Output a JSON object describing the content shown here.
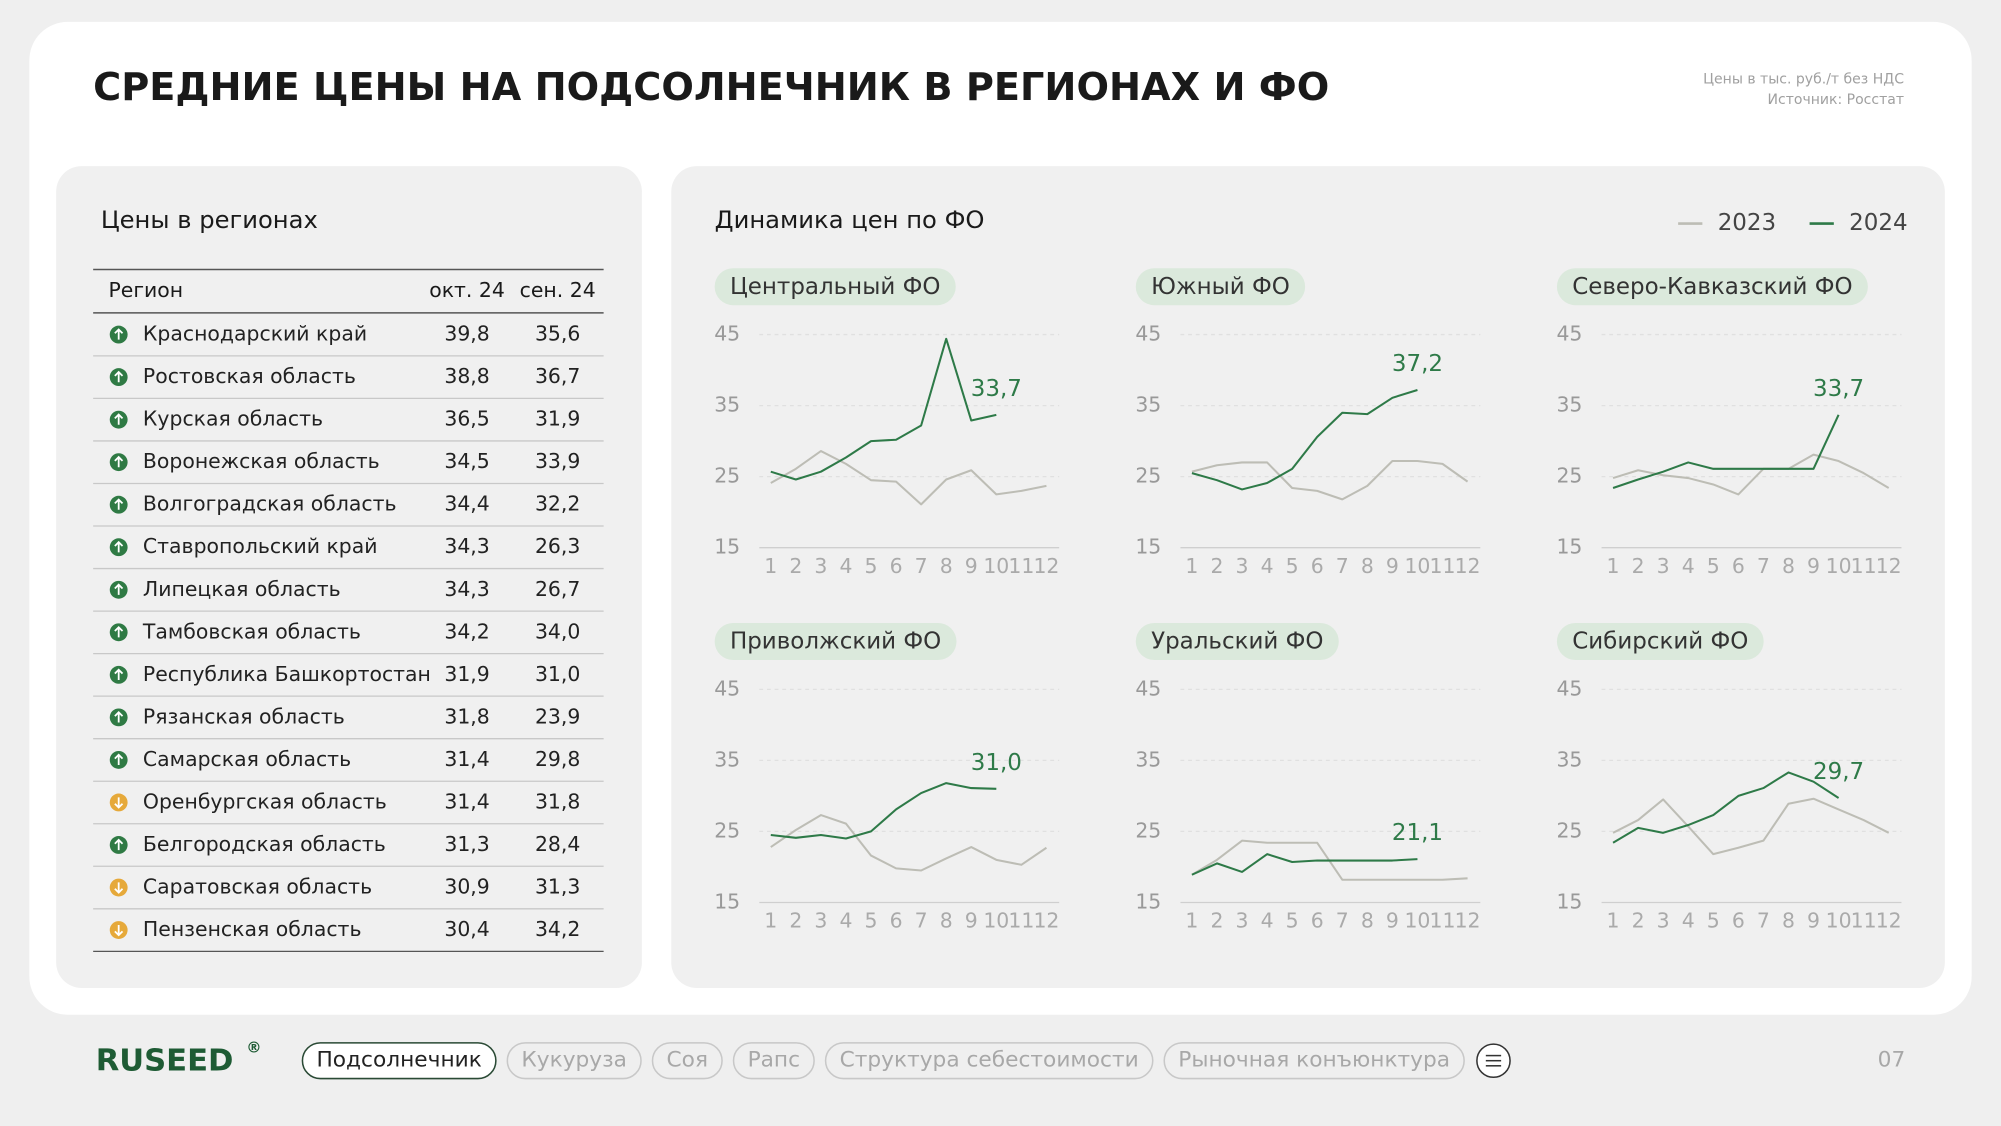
{
  "header": {
    "title": "СРЕДНИЕ ЦЕНЫ НА ПОДСОЛНЕЧНИК В РЕГИОНАХ И ФО",
    "note": [
      "Цены в тыс. руб./т без НДС",
      "Источник: Росстат"
    ]
  },
  "table": {
    "title": "Цены в регионах",
    "columns": [
      "Регион",
      "окт. 24",
      "сен. 24"
    ],
    "rows": [
      {
        "region": "Краснодарский край",
        "oct": "39,8",
        "sep": "35,6",
        "trend": "up"
      },
      {
        "region": "Ростовская область",
        "oct": "38,8",
        "sep": "36,7",
        "trend": "up"
      },
      {
        "region": "Курская область",
        "oct": "36,5",
        "sep": "31,9",
        "trend": "up"
      },
      {
        "region": "Воронежская область",
        "oct": "34,5",
        "sep": "33,9",
        "trend": "up"
      },
      {
        "region": "Волгоградская область",
        "oct": "34,4",
        "sep": "32,2",
        "trend": "up"
      },
      {
        "region": "Ставропольский край",
        "oct": "34,3",
        "sep": "26,3",
        "trend": "up"
      },
      {
        "region": "Липецкая область",
        "oct": "34,3",
        "sep": "26,7",
        "trend": "up"
      },
      {
        "region": "Тамбовская область",
        "oct": "34,2",
        "sep": "34,0",
        "trend": "up"
      },
      {
        "region": "Республика Башкортостан",
        "oct": "31,9",
        "sep": "31,0",
        "trend": "up"
      },
      {
        "region": "Рязанская область",
        "oct": "31,8",
        "sep": "23,9",
        "trend": "up"
      },
      {
        "region": "Самарская область",
        "oct": "31,4",
        "sep": "29,8",
        "trend": "up"
      },
      {
        "region": "Оренбургская область",
        "oct": "31,4",
        "sep": "31,8",
        "trend": "down"
      },
      {
        "region": "Белгородская область",
        "oct": "31,3",
        "sep": "28,4",
        "trend": "up"
      },
      {
        "region": "Саратовская область",
        "oct": "30,9",
        "sep": "31,3",
        "trend": "down"
      },
      {
        "region": "Пензенская область",
        "oct": "30,4",
        "sep": "34,2",
        "trend": "down"
      }
    ]
  },
  "charts_title": "Динамика цен по ФО",
  "chart_data": [
    {
      "type": "line",
      "title": "Центральный ФО",
      "categories": [
        "1",
        "2",
        "3",
        "4",
        "5",
        "6",
        "7",
        "8",
        "9",
        "10",
        "11",
        "12"
      ],
      "ylim": [
        15,
        45
      ],
      "yticks": [
        15,
        25,
        35,
        45
      ],
      "series": [
        {
          "name": "2023",
          "color": "#bdbdb5",
          "values": [
            24.1,
            26.1,
            28.6,
            26.8,
            24.5,
            24.3,
            21.1,
            24.6,
            25.9,
            22.5,
            23.0,
            23.7
          ]
        },
        {
          "name": "2024",
          "color": "#2e7a48",
          "values": [
            25.7,
            24.6,
            25.7,
            27.7,
            30.0,
            30.2,
            32.2,
            44.4,
            32.9,
            33.7,
            null,
            null
          ],
          "value_labels": [
            null,
            null,
            null,
            null,
            null,
            null,
            null,
            null,
            null,
            "33,7",
            null,
            null
          ]
        }
      ]
    },
    {
      "type": "line",
      "title": "Южный ФО",
      "categories": [
        "1",
        "2",
        "3",
        "4",
        "5",
        "6",
        "7",
        "8",
        "9",
        "10",
        "11",
        "12"
      ],
      "ylim": [
        15,
        45
      ],
      "yticks": [
        15,
        25,
        35,
        45
      ],
      "series": [
        {
          "name": "2023",
          "color": "#bdbdb5",
          "values": [
            25.7,
            26.6,
            27.0,
            27.0,
            23.4,
            23.0,
            21.8,
            23.7,
            27.2,
            27.2,
            26.8,
            24.3
          ]
        },
        {
          "name": "2024",
          "color": "#2e7a48",
          "values": [
            25.5,
            24.5,
            23.2,
            24.1,
            26.1,
            30.6,
            34.0,
            33.8,
            36.1,
            37.2,
            null,
            null
          ],
          "value_labels": [
            null,
            null,
            null,
            null,
            null,
            null,
            null,
            null,
            null,
            "37,2",
            null,
            null
          ]
        }
      ]
    },
    {
      "type": "line",
      "title": "Северо-Кавказский ФО",
      "categories": [
        "1",
        "2",
        "3",
        "4",
        "5",
        "6",
        "7",
        "8",
        "9",
        "10",
        "11",
        "12"
      ],
      "ylim": [
        15,
        45
      ],
      "yticks": [
        15,
        25,
        35,
        45
      ],
      "series": [
        {
          "name": "2023",
          "color": "#bdbdb5",
          "values": [
            24.8,
            25.9,
            25.2,
            24.8,
            23.9,
            22.5,
            26.1,
            26.1,
            28.1,
            27.2,
            25.5,
            23.4
          ]
        },
        {
          "name": "2024",
          "color": "#2e7a48",
          "values": [
            23.4,
            24.6,
            25.7,
            27.0,
            26.1,
            26.1,
            26.1,
            26.1,
            26.1,
            33.7,
            null,
            null
          ],
          "value_labels": [
            null,
            null,
            null,
            null,
            null,
            null,
            null,
            null,
            null,
            "33,7",
            null,
            null
          ]
        }
      ]
    },
    {
      "type": "line",
      "title": "Приволжский ФО",
      "categories": [
        "1",
        "2",
        "3",
        "4",
        "5",
        "6",
        "7",
        "8",
        "9",
        "10",
        "11",
        "12"
      ],
      "ylim": [
        15,
        45
      ],
      "yticks": [
        15,
        25,
        35,
        45
      ],
      "series": [
        {
          "name": "2023",
          "color": "#bdbdb5",
          "values": [
            22.8,
            25.2,
            27.3,
            26.1,
            21.6,
            19.8,
            19.5,
            21.2,
            22.8,
            21.0,
            20.3,
            22.7
          ]
        },
        {
          "name": "2024",
          "color": "#2e7a48",
          "values": [
            24.5,
            24.1,
            24.5,
            24.0,
            25.0,
            28.1,
            30.4,
            31.8,
            31.1,
            31.0,
            null,
            null
          ],
          "value_labels": [
            null,
            null,
            null,
            null,
            null,
            null,
            null,
            null,
            null,
            "31,0",
            null,
            null
          ]
        }
      ]
    },
    {
      "type": "line",
      "title": "Уральский ФО",
      "categories": [
        "1",
        "2",
        "3",
        "4",
        "5",
        "6",
        "7",
        "8",
        "9",
        "10",
        "11",
        "12"
      ],
      "ylim": [
        15,
        45
      ],
      "yticks": [
        15,
        25,
        35,
        45
      ],
      "series": [
        {
          "name": "2023",
          "color": "#bdbdb5",
          "values": [
            18.9,
            21.0,
            23.7,
            23.4,
            23.4,
            23.4,
            18.2,
            18.2,
            18.2,
            18.2,
            18.2,
            18.4
          ]
        },
        {
          "name": "2024",
          "color": "#2e7a48",
          "values": [
            18.9,
            20.5,
            19.3,
            21.8,
            20.7,
            20.9,
            20.9,
            20.9,
            20.9,
            21.1,
            null,
            null
          ],
          "value_labels": [
            null,
            null,
            null,
            null,
            null,
            null,
            null,
            null,
            null,
            "21,1",
            null,
            null
          ]
        }
      ]
    },
    {
      "type": "line",
      "title": "Сибирский ФО",
      "categories": [
        "1",
        "2",
        "3",
        "4",
        "5",
        "6",
        "7",
        "8",
        "9",
        "10",
        "11",
        "12"
      ],
      "ylim": [
        15,
        45
      ],
      "yticks": [
        15,
        25,
        35,
        45
      ],
      "series": [
        {
          "name": "2023",
          "color": "#bdbdb5",
          "values": [
            24.8,
            26.6,
            29.5,
            25.7,
            21.8,
            22.7,
            23.7,
            28.9,
            29.6,
            28.1,
            26.6,
            24.8
          ]
        },
        {
          "name": "2024",
          "color": "#2e7a48",
          "values": [
            23.4,
            25.5,
            24.8,
            25.9,
            27.3,
            30.0,
            31.1,
            33.3,
            32.0,
            29.7,
            null,
            null
          ],
          "value_labels": [
            null,
            null,
            null,
            null,
            null,
            null,
            null,
            null,
            null,
            "29,7",
            null,
            null
          ]
        }
      ]
    }
  ],
  "footer": {
    "logo": "RUSEED",
    "logo_mark": "®",
    "tabs": [
      "Подсолнечник",
      "Кукуруза",
      "Соя",
      "Рапс",
      "Структура себестоимости",
      "Рыночная конъюнктура"
    ],
    "active_tab": 0,
    "page": "07"
  }
}
